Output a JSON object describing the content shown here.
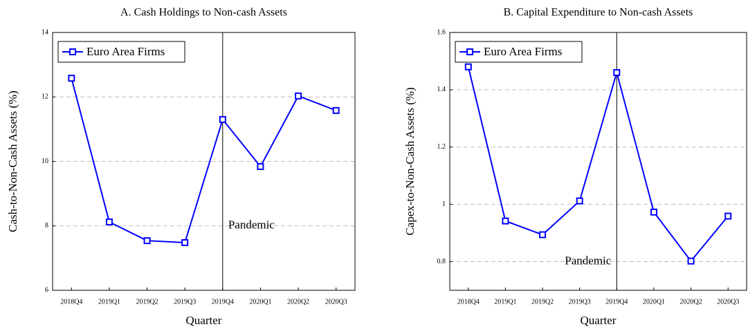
{
  "chart_data": [
    {
      "type": "line",
      "title": "A. Cash Holdings to Non-cash Assets",
      "x_label": "Quarter",
      "y_label": "Cash-to-Non-Cash Assets (%)",
      "categories": [
        "2018Q4",
        "2019Q1",
        "2019Q2",
        "2019Q3",
        "2019Q4",
        "2020Q1",
        "2020Q2",
        "2020Q3"
      ],
      "series": [
        {
          "name": "Euro Area Firms",
          "color": "#0000ff",
          "values": [
            12.58,
            8.12,
            7.54,
            7.48,
            11.3,
            9.84,
            12.03,
            11.58
          ]
        }
      ],
      "ylim": [
        6,
        14
      ],
      "yticks": [
        6,
        8,
        10,
        12,
        14
      ],
      "grid": true,
      "legend": "top-left",
      "annotation": {
        "text": "Pandemic",
        "at": "2019Q4"
      }
    },
    {
      "type": "line",
      "title": "B. Capital Expenditure to Non-cash Assets",
      "x_label": "Quarter",
      "y_label": "Capex-to-Non-Cash Assets (%)",
      "categories": [
        "2018Q4",
        "2019Q1",
        "2019Q2",
        "2019Q3",
        "2019Q4",
        "2020Q1",
        "2020Q2",
        "2020Q3"
      ],
      "series": [
        {
          "name": "Euro Area Firms",
          "color": "#0000ff",
          "values": [
            1.48,
            0.942,
            0.894,
            1.012,
            1.46,
            0.973,
            0.802,
            0.959
          ]
        }
      ],
      "ylim": [
        0.7,
        1.6
      ],
      "yticks": [
        0.8,
        1,
        1.2,
        1.4,
        1.6
      ],
      "grid": true,
      "legend": "top-left",
      "annotation": {
        "text": "Pandemic",
        "at": "2019Q4"
      }
    }
  ]
}
